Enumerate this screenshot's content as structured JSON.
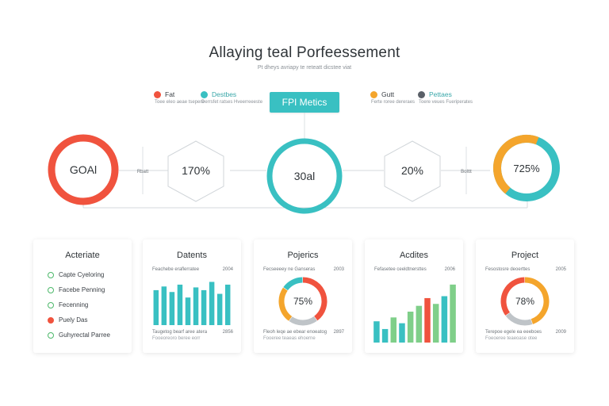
{
  "header": {
    "title": "Allaying teal Porfeessement",
    "subtitle": "Pt dheys avriapy te reteatt dicstee viat"
  },
  "kpi_button": "FPI Metics",
  "legends": [
    {
      "label": "Fat",
      "sub": "Toee eleo aeae tsepere",
      "color": "#f0533e"
    },
    {
      "label": "Destbes",
      "sub": "Derrsfet ratses Hveerreeeste",
      "color": "#39c0c2"
    },
    {
      "label": "Gutt",
      "sub": "Ferte roree dereraes",
      "color": "#f4a52c"
    },
    {
      "label": "Pettaes",
      "sub": "Toere veues Fueriperates",
      "color": "#5a6068"
    }
  ],
  "metrics": [
    {
      "label": "GOAl",
      "color": "#f0533e"
    },
    {
      "label": "170%"
    },
    {
      "label": "30al",
      "color": "#39c0c2"
    },
    {
      "label": "20%"
    },
    {
      "label": "725%",
      "percent": 72.5
    }
  ],
  "connectors": [
    "Rbatt",
    "Bolttt"
  ],
  "cards": {
    "acteriate": {
      "title": "Acteriate",
      "items": [
        "Capte Cyeloring",
        "Facebe Penning",
        "Fecenning",
        "Puely Das",
        "Guhyrectal Parree"
      ],
      "icon_colors": [
        "#4cb86a",
        "#4cb86a",
        "#4cb86a",
        "#f0533e",
        "#4cb86a"
      ]
    },
    "datents": {
      "title": "Datents",
      "top_label": "Feachebe eraflerratee",
      "top_value": "2004",
      "bottom_label": "Taugetog bearf aree atera",
      "bottom_label2": "Fooeoreoro beree eorr",
      "bottom_value": "2856",
      "bars": [
        38,
        42,
        36,
        44,
        30,
        41,
        38,
        47,
        34,
        44
      ]
    },
    "pojerics": {
      "title": "Pojerics",
      "top_label": "Fecseeeey ne Ganseras",
      "top_value": "2003",
      "center": "75%",
      "bottom_label": "Fleoh leqe ae ebear enoeatog",
      "bottom_label2": "Fooeree teaeas ehoerne",
      "bottom_value": "2897",
      "segments": [
        {
          "value": 40,
          "color": "#f0533e"
        },
        {
          "value": 20,
          "color": "#bfc4c8"
        },
        {
          "value": 25,
          "color": "#f4a52c"
        },
        {
          "value": 15,
          "color": "#39c0c2"
        }
      ]
    },
    "acdites": {
      "title": "Acdites",
      "top_label": "Fefasetee ceeldtnersttes",
      "top_value": "2006",
      "bars": [
        {
          "value": 22,
          "color": "#39c0c2"
        },
        {
          "value": 14,
          "color": "#39c0c2"
        },
        {
          "value": 26,
          "color": "#7fcf89"
        },
        {
          "value": 20,
          "color": "#39c0c2"
        },
        {
          "value": 32,
          "color": "#7fcf89"
        },
        {
          "value": 38,
          "color": "#7fcf89"
        },
        {
          "value": 46,
          "color": "#f0533e"
        },
        {
          "value": 40,
          "color": "#7fcf89"
        },
        {
          "value": 48,
          "color": "#39c0c2"
        },
        {
          "value": 60,
          "color": "#7fcf89"
        }
      ]
    },
    "project": {
      "title": "Project",
      "top_label": "Fesostosre deoerttes",
      "top_value": "2005",
      "center": "78%",
      "bottom_label": "Terepoe egele ea eeeboes",
      "bottom_label2": "Foeoeree teaeoase otee",
      "bottom_value": "2009",
      "segments": [
        {
          "value": 45,
          "color": "#f4a52c"
        },
        {
          "value": 20,
          "color": "#bfc4c8"
        },
        {
          "value": 35,
          "color": "#f0533e"
        }
      ]
    }
  }
}
